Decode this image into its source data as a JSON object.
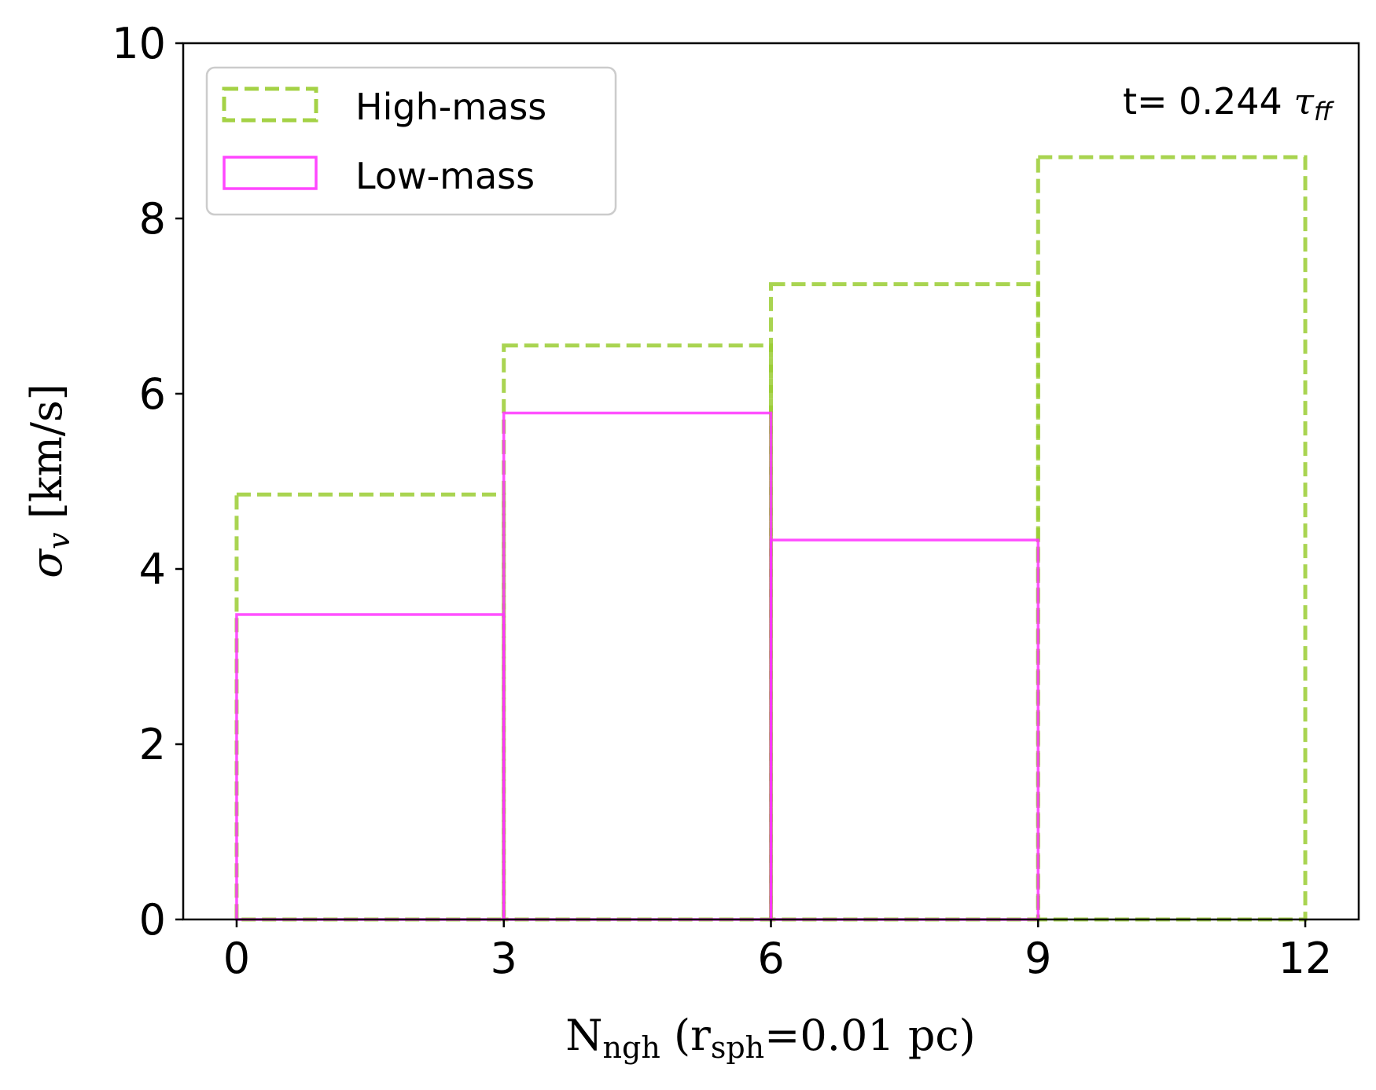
{
  "chart_data": {
    "type": "bar",
    "subtype": "step-histogram",
    "bin_edges": [
      0,
      3,
      6,
      9,
      12
    ],
    "series": [
      {
        "name": "High-mass",
        "values": [
          4.85,
          6.55,
          7.25,
          8.7
        ],
        "color": "#9acd32",
        "linestyle": "dashed"
      },
      {
        "name": "Low-mass",
        "values": [
          3.48,
          5.78,
          4.33,
          0
        ],
        "color": "#ff33ff",
        "linestyle": "solid"
      }
    ],
    "xlim": [
      -0.6,
      12.6
    ],
    "ylim": [
      0,
      10
    ],
    "xticks": [
      "0",
      "3",
      "6",
      "9",
      "12"
    ],
    "yticks": [
      "0",
      "2",
      "4",
      "6",
      "8",
      "10"
    ],
    "xlabel": {
      "main": "N",
      "sub1": "ngh",
      "mid": " (r",
      "sub2": "sph",
      "tail": "=0.01 pc)"
    },
    "ylabel": {
      "symbol": "σ",
      "sub": "v",
      "unit": " [km/s]"
    },
    "annotation": {
      "prefix": "t= 0.244 ",
      "symbol": "τ",
      "sub": "ff"
    },
    "legend_position": "upper-left"
  }
}
